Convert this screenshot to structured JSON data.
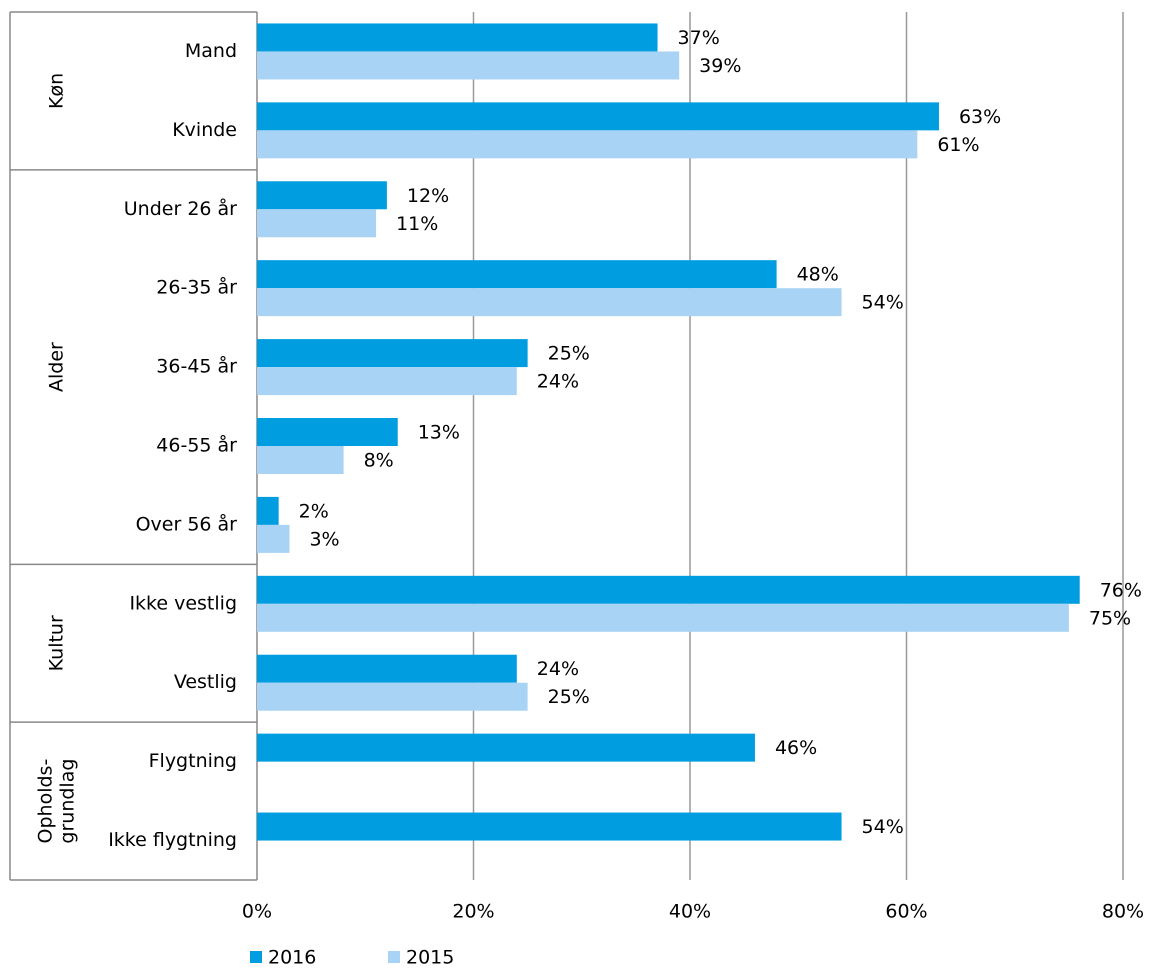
{
  "chart_data": {
    "type": "bar",
    "orientation": "horizontal",
    "groups": [
      {
        "label": [
          "Køn"
        ],
        "categories": [
          "Mand",
          "Kvinde"
        ]
      },
      {
        "label": [
          "Alder"
        ],
        "categories": [
          "Under 26 år",
          "26-35 år",
          "36-45 år",
          "46-55 år",
          "Over 56 år"
        ]
      },
      {
        "label": [
          "Kultur"
        ],
        "categories": [
          "Ikke vestlig",
          "Vestlig"
        ]
      },
      {
        "label": [
          "Opholds-",
          "grundlag"
        ],
        "categories": [
          "Flygtning",
          "Ikke flygtning"
        ]
      }
    ],
    "series": [
      {
        "name": "2016",
        "color": "#009ee0",
        "values": [
          37,
          63,
          12,
          48,
          25,
          13,
          2,
          76,
          24,
          46,
          54
        ],
        "value_labels": [
          "37%",
          "63%",
          "12%",
          "48%",
          "25%",
          "13%",
          "2%",
          "76%",
          "24%",
          "46%",
          "54%"
        ]
      },
      {
        "name": "2015",
        "color": "#a9d3f5",
        "values": [
          39,
          61,
          11,
          54,
          24,
          8,
          3,
          75,
          25,
          null,
          null
        ],
        "value_labels": [
          "39%",
          "61%",
          "11%",
          "54%",
          "24%",
          "8%",
          "3%",
          "75%",
          "25%",
          null,
          null
        ]
      }
    ],
    "xlim": [
      0,
      80
    ],
    "xticks": [
      {
        "value": 0,
        "label": "0%"
      },
      {
        "value": 20,
        "label": "20%"
      },
      {
        "value": 40,
        "label": "40%"
      },
      {
        "value": 60,
        "label": "60%"
      },
      {
        "value": 80,
        "label": "80%"
      }
    ],
    "grid": true,
    "legend": "bottom"
  }
}
